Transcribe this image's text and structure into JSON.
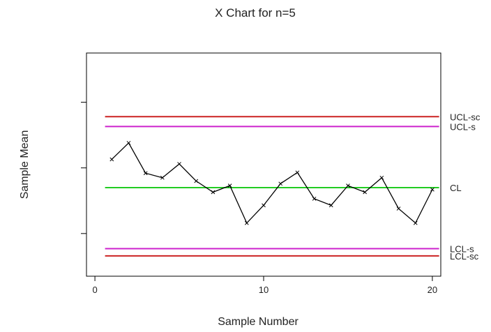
{
  "chart_data": {
    "type": "line",
    "title": "X Chart for n=5",
    "xlabel": "Sample Number",
    "ylabel": "Sample Mean",
    "xlim": [
      -0.5,
      20.5
    ],
    "ylim": [
      -1.65,
      1.75
    ],
    "x_ticks": [
      0,
      10,
      20
    ],
    "x_tick_labels": [
      "0",
      "10",
      "20"
    ],
    "y_ticks": [
      -1,
      0,
      1
    ],
    "grid": false,
    "legend": "none",
    "series": [
      {
        "x": [
          1,
          2,
          3,
          4,
          5,
          6,
          7,
          8,
          9,
          10,
          11,
          12,
          13,
          14,
          15,
          16,
          17,
          18,
          19,
          20
        ],
        "values": [
          0.13,
          0.38,
          -0.08,
          -0.15,
          0.06,
          -0.2,
          -0.37,
          -0.27,
          -0.84,
          -0.57,
          -0.24,
          -0.07,
          -0.47,
          -0.57,
          -0.27,
          -0.37,
          -0.15,
          -0.62,
          -0.84,
          -0.33
        ],
        "color": "#000000"
      }
    ],
    "control_limits": [
      {
        "label": "UCL-sc",
        "value": 0.78,
        "color": "#cc2222"
      },
      {
        "label": "UCL-s",
        "value": 0.63,
        "color": "#cc22cc"
      },
      {
        "label": "CL",
        "value": -0.3,
        "color": "#22cc22"
      },
      {
        "label": "LCL-s",
        "value": -1.23,
        "color": "#cc22cc"
      },
      {
        "label": "LCL-sc",
        "value": -1.34,
        "color": "#cc2222"
      }
    ]
  }
}
